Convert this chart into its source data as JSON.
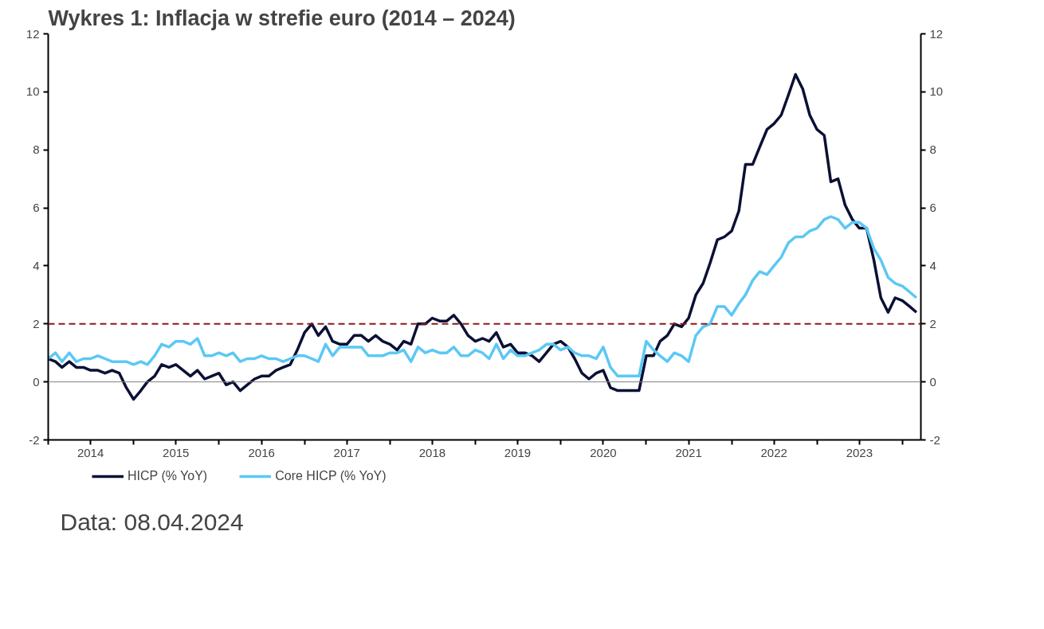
{
  "chart_data": {
    "type": "line",
    "title": "Wykres 1: Inflacja w strefie euro (2014 – 2024)",
    "annotations": [
      "Data: 08.04.2024"
    ],
    "x": [
      "2014-01",
      "2014-02",
      "2014-03",
      "2014-04",
      "2014-05",
      "2014-06",
      "2014-07",
      "2014-08",
      "2014-09",
      "2014-10",
      "2014-11",
      "2014-12",
      "2015-01",
      "2015-02",
      "2015-03",
      "2015-04",
      "2015-05",
      "2015-06",
      "2015-07",
      "2015-08",
      "2015-09",
      "2015-10",
      "2015-11",
      "2015-12",
      "2016-01",
      "2016-02",
      "2016-03",
      "2016-04",
      "2016-05",
      "2016-06",
      "2016-07",
      "2016-08",
      "2016-09",
      "2016-10",
      "2016-11",
      "2016-12",
      "2017-01",
      "2017-02",
      "2017-03",
      "2017-04",
      "2017-05",
      "2017-06",
      "2017-07",
      "2017-08",
      "2017-09",
      "2017-10",
      "2017-11",
      "2017-12",
      "2018-01",
      "2018-02",
      "2018-03",
      "2018-04",
      "2018-05",
      "2018-06",
      "2018-07",
      "2018-08",
      "2018-09",
      "2018-10",
      "2018-11",
      "2018-12",
      "2019-01",
      "2019-02",
      "2019-03",
      "2019-04",
      "2019-05",
      "2019-06",
      "2019-07",
      "2019-08",
      "2019-09",
      "2019-10",
      "2019-11",
      "2019-12",
      "2020-01",
      "2020-02",
      "2020-03",
      "2020-04",
      "2020-05",
      "2020-06",
      "2020-07",
      "2020-08",
      "2020-09",
      "2020-10",
      "2020-11",
      "2020-12",
      "2021-01",
      "2021-02",
      "2021-03",
      "2021-04",
      "2021-05",
      "2021-06",
      "2021-07",
      "2021-08",
      "2021-09",
      "2021-10",
      "2021-11",
      "2021-12",
      "2022-01",
      "2022-02",
      "2022-03",
      "2022-04",
      "2022-05",
      "2022-06",
      "2022-07",
      "2022-08",
      "2022-09",
      "2022-10",
      "2022-11",
      "2022-12",
      "2023-01",
      "2023-02",
      "2023-03",
      "2023-04",
      "2023-05",
      "2023-06",
      "2023-07",
      "2023-08",
      "2023-09",
      "2023-10",
      "2023-11",
      "2023-12",
      "2024-01",
      "2024-02",
      "2024-03"
    ],
    "series": [
      {
        "name": "HICP (% YoY)",
        "color": "#0b1035",
        "values": [
          0.8,
          0.7,
          0.5,
          0.7,
          0.5,
          0.5,
          0.4,
          0.4,
          0.3,
          0.4,
          0.3,
          -0.2,
          -0.6,
          -0.3,
          0.0,
          0.2,
          0.6,
          0.5,
          0.6,
          0.4,
          0.2,
          0.4,
          0.1,
          0.2,
          0.3,
          -0.1,
          0.0,
          -0.3,
          -0.1,
          0.1,
          0.2,
          0.2,
          0.4,
          0.5,
          0.6,
          1.1,
          1.7,
          2.0,
          1.6,
          1.9,
          1.4,
          1.3,
          1.3,
          1.6,
          1.6,
          1.4,
          1.6,
          1.4,
          1.3,
          1.1,
          1.4,
          1.3,
          2.0,
          2.0,
          2.2,
          2.1,
          2.1,
          2.3,
          2.0,
          1.6,
          1.4,
          1.5,
          1.4,
          1.7,
          1.2,
          1.3,
          1.0,
          1.0,
          0.9,
          0.7,
          1.0,
          1.3,
          1.4,
          1.2,
          0.8,
          0.3,
          0.1,
          0.3,
          0.4,
          -0.2,
          -0.3,
          -0.3,
          -0.3,
          -0.3,
          0.9,
          0.9,
          1.4,
          1.6,
          2.0,
          1.9,
          2.2,
          3.0,
          3.4,
          4.1,
          4.9,
          5.0,
          5.2,
          5.9,
          7.5,
          7.5,
          8.1,
          8.7,
          8.9,
          9.2,
          9.9,
          10.6,
          10.1,
          9.2,
          8.7,
          8.5,
          6.9,
          7.0,
          6.1,
          5.6,
          5.3,
          5.3,
          4.2,
          2.9,
          2.4,
          2.9,
          2.8,
          2.6,
          2.4
        ]
      },
      {
        "name": "Core HICP (% YoY)",
        "color": "#5bc8f5",
        "values": [
          0.8,
          1.0,
          0.7,
          1.0,
          0.7,
          0.8,
          0.8,
          0.9,
          0.8,
          0.7,
          0.7,
          0.7,
          0.6,
          0.7,
          0.6,
          0.9,
          1.3,
          1.2,
          1.4,
          1.4,
          1.3,
          1.5,
          0.9,
          0.9,
          1.0,
          0.9,
          1.0,
          0.7,
          0.8,
          0.8,
          0.9,
          0.8,
          0.8,
          0.7,
          0.8,
          0.9,
          0.9,
          0.8,
          0.7,
          1.3,
          0.9,
          1.2,
          1.2,
          1.2,
          1.2,
          0.9,
          0.9,
          0.9,
          1.0,
          1.0,
          1.1,
          0.7,
          1.2,
          1.0,
          1.1,
          1.0,
          1.0,
          1.2,
          0.9,
          0.9,
          1.1,
          1.0,
          0.8,
          1.3,
          0.8,
          1.1,
          0.9,
          0.9,
          1.0,
          1.1,
          1.3,
          1.3,
          1.1,
          1.2,
          1.0,
          0.9,
          0.9,
          0.8,
          1.2,
          0.5,
          0.2,
          0.2,
          0.2,
          0.2,
          1.4,
          1.1,
          0.9,
          0.7,
          1.0,
          0.9,
          0.7,
          1.6,
          1.9,
          2.0,
          2.6,
          2.6,
          2.3,
          2.7,
          3.0,
          3.5,
          3.8,
          3.7,
          4.0,
          4.3,
          4.8,
          5.0,
          5.0,
          5.2,
          5.3,
          5.6,
          5.7,
          5.6,
          5.3,
          5.5,
          5.5,
          5.3,
          4.6,
          4.2,
          3.6,
          3.4,
          3.3,
          3.1,
          2.9
        ]
      }
    ],
    "xlim": [
      "2014-01-01",
      "2024-03-20"
    ],
    "xticks": [
      {
        "value": "2014-01",
        "label": null
      },
      {
        "value": "2014-07",
        "label": "2014"
      },
      {
        "value": "2015-01",
        "label": null
      },
      {
        "value": "2015-07",
        "label": "2015"
      },
      {
        "value": "2016-01",
        "label": null
      },
      {
        "value": "2016-07",
        "label": "2016"
      },
      {
        "value": "2017-01",
        "label": null
      },
      {
        "value": "2017-07",
        "label": "2017"
      },
      {
        "value": "2018-01",
        "label": null
      },
      {
        "value": "2018-07",
        "label": "2018"
      },
      {
        "value": "2019-01",
        "label": null
      },
      {
        "value": "2019-07",
        "label": "2019"
      },
      {
        "value": "2020-01",
        "label": null
      },
      {
        "value": "2020-07",
        "label": "2020"
      },
      {
        "value": "2021-01",
        "label": null
      },
      {
        "value": "2021-07",
        "label": "2021"
      },
      {
        "value": "2022-01",
        "label": null
      },
      {
        "value": "2022-07",
        "label": "2022"
      },
      {
        "value": "2023-01",
        "label": null
      },
      {
        "value": "2023-07",
        "label": "2023"
      },
      {
        "value": "2024-01",
        "label": null
      }
    ],
    "ylim": [
      -2,
      12
    ],
    "yticks": [
      -2,
      0,
      2,
      4,
      6,
      8,
      10,
      12
    ],
    "y2lim": [
      -2,
      12
    ],
    "y2ticks": [
      -2,
      0,
      2,
      4,
      6,
      8,
      10,
      12
    ],
    "ref_lines": [
      {
        "axis": "y",
        "value": 0,
        "label": null,
        "color": "#808080",
        "line_style": "solid"
      },
      {
        "axis": "y",
        "value": 2,
        "label": null,
        "color": "#8b1a1a",
        "line_style": "dashed"
      }
    ],
    "grid": false,
    "legend": "bottom",
    "line_style": "solid",
    "marker": "none"
  }
}
